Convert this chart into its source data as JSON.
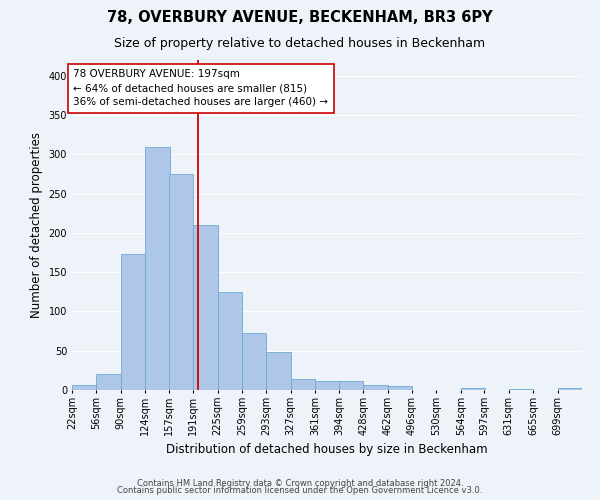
{
  "title": "78, OVERBURY AVENUE, BECKENHAM, BR3 6PY",
  "subtitle": "Size of property relative to detached houses in Beckenham",
  "xlabel": "Distribution of detached houses by size in Beckenham",
  "ylabel": "Number of detached properties",
  "bin_labels": [
    "22sqm",
    "56sqm",
    "90sqm",
    "124sqm",
    "157sqm",
    "191sqm",
    "225sqm",
    "259sqm",
    "293sqm",
    "327sqm",
    "361sqm",
    "394sqm",
    "428sqm",
    "462sqm",
    "496sqm",
    "530sqm",
    "564sqm",
    "597sqm",
    "631sqm",
    "665sqm",
    "699sqm"
  ],
  "bin_edges": [
    22,
    56,
    90,
    124,
    157,
    191,
    225,
    259,
    293,
    327,
    361,
    394,
    428,
    462,
    496,
    530,
    564,
    597,
    631,
    665,
    699
  ],
  "bar_heights": [
    7,
    20,
    173,
    309,
    275,
    210,
    125,
    72,
    48,
    14,
    12,
    12,
    6,
    5,
    0,
    0,
    2,
    0,
    1,
    0,
    2
  ],
  "bar_color": "#aec6e8",
  "bar_edge_color": "#6aaad4",
  "vline_x": 197,
  "vline_color": "#cc0000",
  "annotation_title": "78 OVERBURY AVENUE: 197sqm",
  "annotation_line1": "← 64% of detached houses are smaller (815)",
  "annotation_line2": "36% of semi-detached houses are larger (460) →",
  "annotation_box_color": "#ffffff",
  "annotation_box_edge": "#cc0000",
  "ylim": [
    0,
    420
  ],
  "footer1": "Contains HM Land Registry data © Crown copyright and database right 2024.",
  "footer2": "Contains public sector information licensed under the Open Government Licence v3.0.",
  "background_color": "#eef2f9",
  "grid_color": "#ffffff",
  "title_fontsize": 10.5,
  "subtitle_fontsize": 9,
  "axis_label_fontsize": 8.5,
  "tick_fontsize": 7,
  "footer_fontsize": 6,
  "annotation_fontsize": 7.5
}
